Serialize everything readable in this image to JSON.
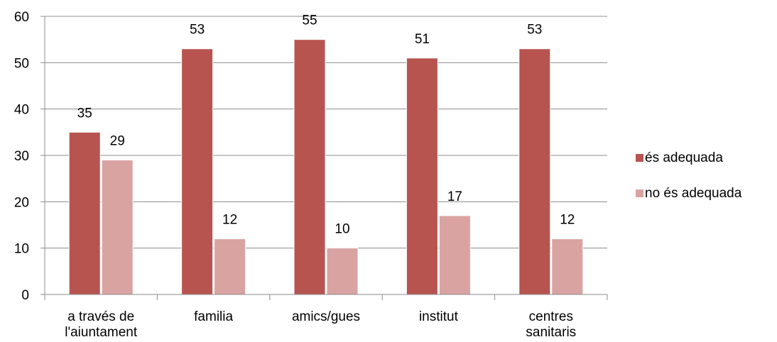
{
  "chart_data": {
    "type": "bar",
    "categories": [
      [
        "a través de",
        "l'aiuntament"
      ],
      [
        "familia"
      ],
      [
        "amics/gues"
      ],
      [
        "institut"
      ],
      [
        "centres",
        "sanitaris"
      ]
    ],
    "series": [
      {
        "name": "és adequada",
        "values": [
          35,
          53,
          55,
          51,
          53
        ],
        "color": "#B85450"
      },
      {
        "name": "no és adequada",
        "values": [
          29,
          12,
          10,
          17,
          12
        ],
        "color": "#D9A3A1"
      }
    ],
    "ylim": [
      0,
      60
    ],
    "yticks": [
      0,
      10,
      20,
      30,
      40,
      50,
      60
    ],
    "grid": true,
    "legend_position": "right",
    "data_labels": true
  }
}
